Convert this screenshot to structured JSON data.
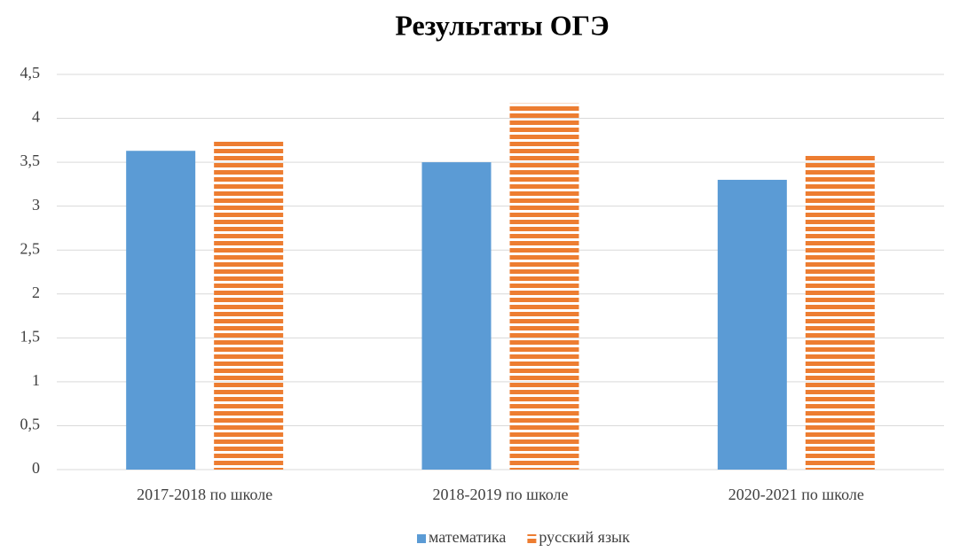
{
  "chart_data": {
    "type": "bar",
    "title": "Результаты ОГЭ",
    "categories": [
      "2017-2018 по школе",
      "2018-2019 по школе",
      "2020-2021 по школе"
    ],
    "series": [
      {
        "name": "математика",
        "color": "#5b9bd5",
        "values": [
          3.63,
          3.5,
          3.3
        ]
      },
      {
        "name": "русский язык",
        "color": "#ed7d31",
        "hatch": "horizontal",
        "values": [
          3.74,
          4.17,
          3.6
        ]
      }
    ],
    "ylim": [
      0,
      4.5
    ],
    "yticks": [
      0,
      {
        "value": 0.5,
        "label": "0,5"
      },
      1,
      {
        "value": 1.5,
        "label": "1,5"
      },
      2,
      {
        "value": 2.5,
        "label": "2,5"
      },
      3,
      {
        "value": 3.5,
        "label": "3,5"
      },
      4,
      {
        "value": 4.5,
        "label": "4,5"
      }
    ],
    "grid": true,
    "legend": "bottom"
  }
}
